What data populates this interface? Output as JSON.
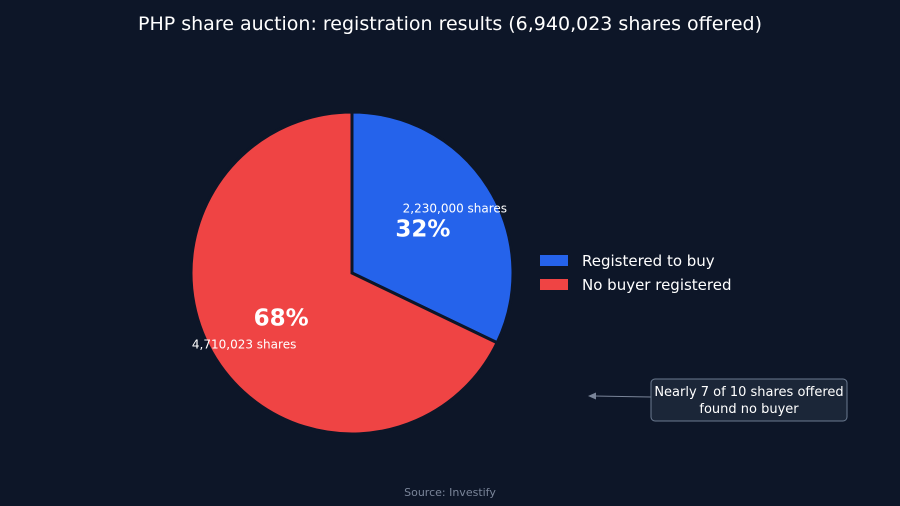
{
  "chart_data": {
    "type": "pie",
    "title": "PHP share auction: registration results (6,940,023 shares offered)",
    "slices": [
      {
        "label": "Registered to buy",
        "value": 2230000,
        "percent_label": "32%",
        "value_label": "2,230,000 shares",
        "color": "#2563eb"
      },
      {
        "label": "No buyer registered",
        "value": 4710023,
        "percent_label": "68%",
        "value_label": "4,710,023 shares",
        "color": "#ef4444"
      }
    ],
    "legend_position": "right",
    "annotation": [
      "Nearly 7 of 10 shares offered",
      "found no buyer"
    ],
    "source": "Source: Investify"
  },
  "colors": {
    "background": "#0d1628",
    "slice_border": "#0d1628",
    "note_border": "#6b7a90",
    "note_fill": "#1b2638"
  }
}
